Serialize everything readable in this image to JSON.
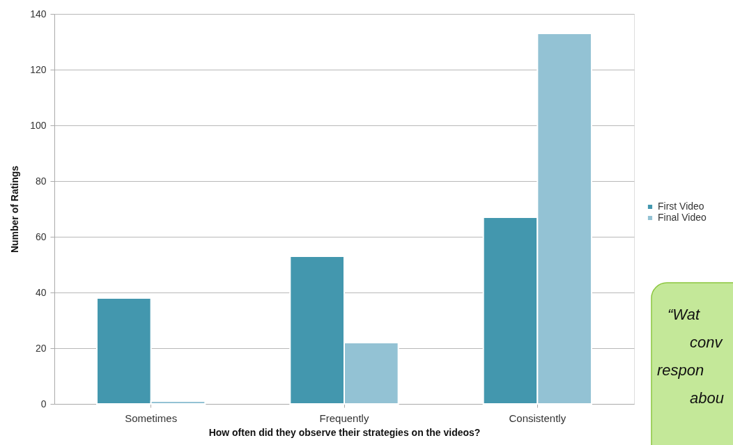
{
  "chart_data": {
    "type": "bar",
    "xlabel": "How often did they observe their strategies on the videos?",
    "ylabel": "Number of Ratings",
    "categories": [
      "Sometimes",
      "Frequently",
      "Consistently"
    ],
    "series": [
      {
        "name": "First Video",
        "color": "#4397ae",
        "values": [
          38,
          53,
          67
        ]
      },
      {
        "name": "Final Video",
        "color": "#93c2d4",
        "values": [
          1,
          22,
          133
        ]
      }
    ],
    "ylim": [
      0,
      140
    ],
    "yticks": [
      0,
      20,
      40,
      60,
      80,
      100,
      120,
      140
    ],
    "grid": "y",
    "legend": "right",
    "annotations": [
      "“Wat",
      "conv",
      "respon",
      "abou"
    ]
  }
}
